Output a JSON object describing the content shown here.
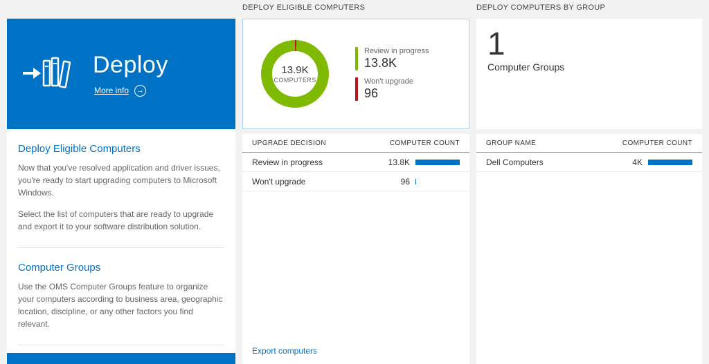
{
  "colors": {
    "accent_blue": "#0072c6",
    "green": "#7fba00",
    "red": "#ba141a",
    "bar_blue": "#0072c6"
  },
  "icons": {
    "more_info_arrow": "→"
  },
  "left": {
    "tile": {
      "title": "Deploy",
      "more_info_label": "More info"
    },
    "sections": [
      {
        "heading": "Deploy Eligible Computers",
        "paragraphs": [
          "Now that you've resolved application and driver issues, you're ready to start upgrading computers to Microsoft Windows.",
          "Select the list of computers that are ready to upgrade and export it to your software distribution solution."
        ]
      },
      {
        "heading": "Computer Groups",
        "paragraphs": [
          "Use the OMS Computer Groups feature to organize your computers according to business area, geographic location, discipline, or any other factors you find relevant."
        ]
      }
    ]
  },
  "middle": {
    "header": "DEPLOY ELIGIBLE COMPUTERS",
    "donut": {
      "center_value": "13.9K",
      "center_label": "COMPUTERS",
      "legend": [
        {
          "label": "Review in progress",
          "value": "13.8K",
          "color": "#7fba00"
        },
        {
          "label": "Won't upgrade",
          "value": "96",
          "color": "#ba141a"
        }
      ]
    },
    "table": {
      "columns": [
        "UPGRADE DECISION",
        "COMPUTER COUNT"
      ],
      "rows": [
        {
          "label": "Review in progress",
          "value": "13.8K",
          "bar_pct": 100
        },
        {
          "label": "Won't upgrade",
          "value": "96",
          "bar_pct": 2
        }
      ]
    },
    "footer_link": "Export computers"
  },
  "right": {
    "header": "DEPLOY COMPUTERS BY GROUP",
    "summary": {
      "value": "1",
      "label": "Computer Groups"
    },
    "table": {
      "columns": [
        "GROUP NAME",
        "COMPUTER COUNT"
      ],
      "rows": [
        {
          "label": "Dell Computers",
          "value": "4K",
          "bar_pct": 100
        }
      ]
    }
  },
  "chart_data": [
    {
      "type": "pie",
      "title": "Deploy Eligible Computers",
      "center_value": "13.9K",
      "center_label": "COMPUTERS",
      "labels": [
        "Review in progress",
        "Won't upgrade"
      ],
      "values": [
        13800,
        96
      ],
      "colors": [
        "#7fba00",
        "#ba141a"
      ],
      "legend_position": "right"
    },
    {
      "type": "table",
      "title": "Upgrade decision counts",
      "columns": [
        "UPGRADE DECISION",
        "COMPUTER COUNT"
      ],
      "rows": [
        [
          "Review in progress",
          "13.8K"
        ],
        [
          "Won't upgrade",
          "96"
        ]
      ]
    },
    {
      "type": "table",
      "title": "Computers by group",
      "columns": [
        "GROUP NAME",
        "COMPUTER COUNT"
      ],
      "rows": [
        [
          "Dell Computers",
          "4K"
        ]
      ]
    }
  ]
}
